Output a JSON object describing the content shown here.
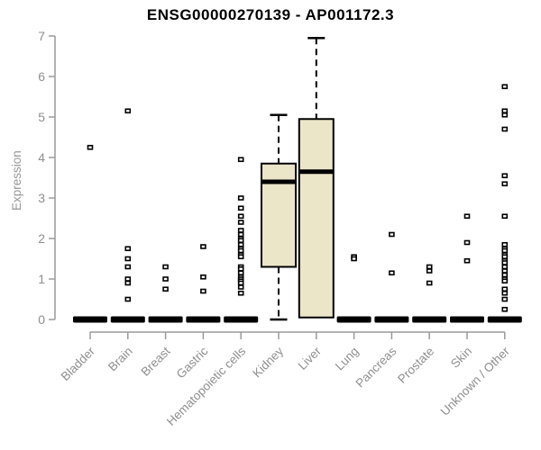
{
  "chart_data": {
    "type": "boxplot",
    "title": "ENSG00000270139 - AP001172.3",
    "ylabel": "Expression",
    "ylim": [
      0,
      7
    ],
    "yticks": [
      0,
      1,
      2,
      3,
      4,
      5,
      6,
      7
    ],
    "grid": false,
    "legend": false,
    "colors": {
      "axis": "#9a9a9a",
      "tick_label": "#8f8f8f",
      "title": "#000000",
      "box_fill": "#ece6c9",
      "box_stroke": "#000000",
      "background": "#ffffff"
    },
    "categories": [
      "Bladder",
      "Brain",
      "Breast",
      "Gastric",
      "Hematopoietic cells",
      "Kidney",
      "Liver",
      "Lung",
      "Pancreas",
      "Prostate",
      "Skin",
      "Unknown / Other"
    ],
    "boxes": [
      {
        "category": "Bladder",
        "q1": 0,
        "median": 0,
        "q3": 0,
        "whisker_low": 0,
        "whisker_high": 0,
        "outliers": [
          4.25
        ]
      },
      {
        "category": "Brain",
        "q1": 0,
        "median": 0,
        "q3": 0,
        "whisker_low": 0,
        "whisker_high": 0,
        "outliers": [
          5.15,
          1.75,
          1.5,
          1.3,
          1.0,
          0.9,
          0.5
        ]
      },
      {
        "category": "Breast",
        "q1": 0,
        "median": 0,
        "q3": 0,
        "whisker_low": 0,
        "whisker_high": 0,
        "outliers": [
          1.3,
          1.0,
          0.75
        ]
      },
      {
        "category": "Gastric",
        "q1": 0,
        "median": 0,
        "q3": 0,
        "whisker_low": 0,
        "whisker_high": 0,
        "outliers": [
          1.8,
          1.05,
          0.7
        ]
      },
      {
        "category": "Hematopoietic cells",
        "q1": 0,
        "median": 0,
        "q3": 0,
        "whisker_low": 0,
        "whisker_high": 0,
        "outliers": [
          3.95,
          3.0,
          2.75,
          2.55,
          2.4,
          2.2,
          2.1,
          2.0,
          1.95,
          1.85,
          1.75,
          1.7,
          1.6,
          1.55,
          1.3,
          1.25,
          1.15,
          1.05,
          1.0,
          0.95,
          0.9,
          0.8,
          0.65
        ]
      },
      {
        "category": "Kidney",
        "q1": 1.3,
        "median": 3.4,
        "q3": 3.85,
        "whisker_low": 0,
        "whisker_high": 5.05,
        "outliers": []
      },
      {
        "category": "Liver",
        "q1": 0.05,
        "median": 3.65,
        "q3": 4.95,
        "whisker_low": 0.05,
        "whisker_high": 6.95,
        "outliers": []
      },
      {
        "category": "Lung",
        "q1": 0,
        "median": 0,
        "q3": 0,
        "whisker_low": 0,
        "whisker_high": 0,
        "outliers": [
          1.55,
          1.5
        ]
      },
      {
        "category": "Pancreas",
        "q1": 0,
        "median": 0,
        "q3": 0,
        "whisker_low": 0,
        "whisker_high": 0,
        "outliers": [
          2.1,
          1.15
        ]
      },
      {
        "category": "Prostate",
        "q1": 0,
        "median": 0,
        "q3": 0,
        "whisker_low": 0,
        "whisker_high": 0,
        "outliers": [
          1.3,
          1.2,
          0.9
        ]
      },
      {
        "category": "Skin",
        "q1": 0,
        "median": 0,
        "q3": 0,
        "whisker_low": 0,
        "whisker_high": 0,
        "outliers": [
          2.55,
          1.9,
          1.45
        ]
      },
      {
        "category": "Unknown / Other",
        "q1": 0,
        "median": 0,
        "q3": 0,
        "whisker_low": 0,
        "whisker_high": 0,
        "outliers": [
          5.75,
          5.15,
          5.05,
          4.7,
          3.55,
          3.35,
          2.55,
          1.85,
          1.75,
          1.7,
          1.6,
          1.55,
          1.45,
          1.4,
          1.3,
          1.2,
          1.1,
          1.0,
          0.95,
          0.75,
          0.65,
          0.5,
          0.25
        ]
      }
    ]
  }
}
